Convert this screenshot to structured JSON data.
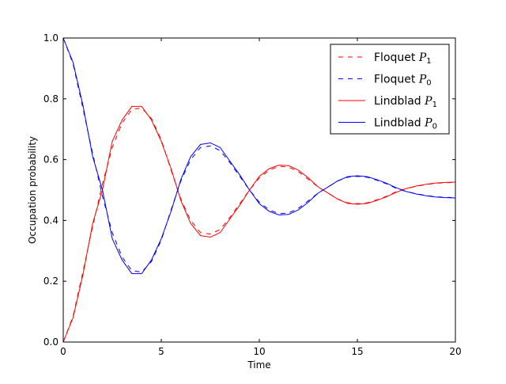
{
  "chart_data": {
    "type": "line",
    "title": "",
    "xlabel": "Time",
    "ylabel": "Occupation probability",
    "xlim": [
      0,
      20
    ],
    "ylim": [
      0.0,
      1.0
    ],
    "xticks": [
      "0",
      "5",
      "10",
      "15",
      "20"
    ],
    "yticks": [
      "0.0",
      "0.2",
      "0.4",
      "0.6",
      "0.8",
      "1.0"
    ],
    "grid": false,
    "legend_position": "top-right",
    "x": [
      0,
      0.5,
      1,
      1.5,
      2,
      2.5,
      3,
      3.5,
      4,
      4.5,
      5,
      5.5,
      6,
      6.5,
      7,
      7.5,
      8,
      8.5,
      9,
      9.5,
      10,
      10.5,
      11,
      11.5,
      12,
      12.5,
      13,
      13.5,
      14,
      14.5,
      15,
      15.5,
      16,
      16.5,
      17,
      17.5,
      18,
      18.5,
      19,
      19.5,
      20
    ],
    "series": [
      {
        "name": "Floquet",
        "name_var": "P",
        "name_sub": "1",
        "color": "#ff0000",
        "dash": "dashed",
        "values": [
          0.0,
          0.085,
          0.23,
          0.38,
          0.52,
          0.64,
          0.72,
          0.765,
          0.77,
          0.735,
          0.665,
          0.565,
          0.47,
          0.4,
          0.36,
          0.355,
          0.37,
          0.41,
          0.455,
          0.5,
          0.54,
          0.565,
          0.578,
          0.575,
          0.56,
          0.535,
          0.51,
          0.49,
          0.47,
          0.458,
          0.455,
          0.458,
          0.468,
          0.48,
          0.495,
          0.505,
          0.512,
          0.518,
          0.522,
          0.524,
          0.525
        ]
      },
      {
        "name": "Floquet",
        "name_var": "P",
        "name_sub": "0",
        "color": "#0000ff",
        "dash": "dashed",
        "values": [
          1.0,
          0.915,
          0.77,
          0.62,
          0.48,
          0.36,
          0.28,
          0.235,
          0.23,
          0.265,
          0.335,
          0.435,
          0.53,
          0.6,
          0.64,
          0.645,
          0.63,
          0.59,
          0.545,
          0.5,
          0.46,
          0.435,
          0.422,
          0.425,
          0.44,
          0.465,
          0.49,
          0.51,
          0.53,
          0.542,
          0.545,
          0.542,
          0.532,
          0.52,
          0.505,
          0.495,
          0.488,
          0.482,
          0.478,
          0.476,
          0.475
        ]
      },
      {
        "name": "Lindblad",
        "name_var": "P",
        "name_sub": "1",
        "color": "#ff0000",
        "dash": "solid",
        "values": [
          0.0,
          0.08,
          0.22,
          0.39,
          0.5,
          0.66,
          0.73,
          0.775,
          0.775,
          0.73,
          0.66,
          0.57,
          0.465,
          0.39,
          0.35,
          0.345,
          0.36,
          0.405,
          0.45,
          0.5,
          0.545,
          0.57,
          0.582,
          0.58,
          0.565,
          0.54,
          0.51,
          0.49,
          0.47,
          0.456,
          0.453,
          0.456,
          0.466,
          0.478,
          0.493,
          0.505,
          0.513,
          0.519,
          0.523,
          0.525,
          0.526
        ]
      },
      {
        "name": "Lindblad",
        "name_var": "P",
        "name_sub": "0",
        "color": "#0000ff",
        "dash": "solid",
        "values": [
          1.0,
          0.92,
          0.78,
          0.61,
          0.5,
          0.34,
          0.27,
          0.225,
          0.225,
          0.27,
          0.34,
          0.43,
          0.535,
          0.61,
          0.65,
          0.655,
          0.64,
          0.595,
          0.55,
          0.5,
          0.455,
          0.43,
          0.418,
          0.42,
          0.435,
          0.46,
          0.49,
          0.51,
          0.53,
          0.544,
          0.547,
          0.544,
          0.534,
          0.522,
          0.507,
          0.495,
          0.487,
          0.481,
          0.477,
          0.475,
          0.474
        ]
      }
    ]
  }
}
